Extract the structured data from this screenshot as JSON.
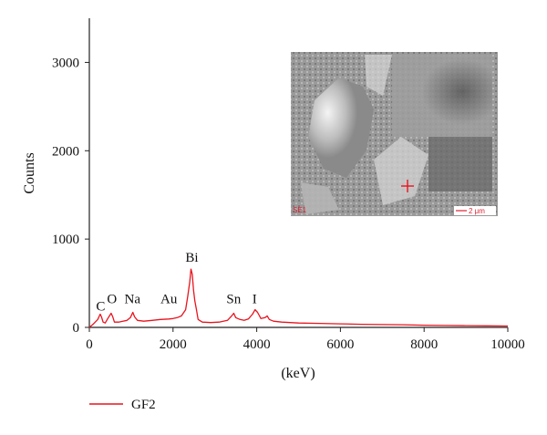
{
  "colors": {
    "spectrum": "#e8141e",
    "axis": "#222222"
  },
  "chart_data": {
    "type": "line",
    "xlabel": "(keV)",
    "ylabel": "Counts",
    "xlim": [
      0,
      10000
    ],
    "ylim": [
      0,
      3500
    ],
    "x_ticks": [
      0,
      2000,
      4000,
      6000,
      8000,
      10000
    ],
    "y_ticks": [
      0,
      1000,
      2000,
      3000
    ],
    "legend": "bottom-left",
    "grid": false,
    "series": [
      {
        "name": "GF2",
        "x": [
          0,
          100,
          200,
          260,
          290,
          330,
          380,
          440,
          520,
          560,
          600,
          700,
          800,
          900,
          980,
          1040,
          1080,
          1150,
          1300,
          1500,
          1700,
          1900,
          2000,
          2100,
          2200,
          2300,
          2350,
          2400,
          2430,
          2460,
          2490,
          2520,
          2560,
          2600,
          2700,
          2900,
          3100,
          3300,
          3400,
          3450,
          3500,
          3600,
          3700,
          3800,
          3900,
          3960,
          4020,
          4100,
          4200,
          4250,
          4300,
          4400,
          4600,
          5000,
          5500,
          6000,
          6500,
          7000,
          7500,
          8000,
          8500,
          9000,
          9500,
          10000
        ],
        "y": [
          0,
          40,
          90,
          150,
          120,
          60,
          50,
          100,
          160,
          120,
          60,
          60,
          70,
          80,
          110,
          170,
          120,
          80,
          70,
          80,
          90,
          95,
          100,
          110,
          130,
          200,
          350,
          520,
          660,
          600,
          420,
          300,
          200,
          90,
          60,
          55,
          60,
          80,
          130,
          160,
          110,
          90,
          80,
          95,
          150,
          200,
          170,
          100,
          110,
          130,
          90,
          70,
          60,
          50,
          45,
          40,
          35,
          32,
          30,
          25,
          22,
          20,
          18,
          15
        ]
      }
    ],
    "annotations": [
      {
        "text": "C",
        "x": 270,
        "y": 150
      },
      {
        "text": "O",
        "x": 540,
        "y": 230
      },
      {
        "text": "Na",
        "x": 1030,
        "y": 230
      },
      {
        "text": "Au",
        "x": 1900,
        "y": 230
      },
      {
        "text": "Bi",
        "x": 2450,
        "y": 700
      },
      {
        "text": "Sn",
        "x": 3450,
        "y": 230
      },
      {
        "text": "I",
        "x": 3950,
        "y": 230
      }
    ]
  },
  "inset": {
    "detector_tag": "SE1",
    "scale_label": "2 μm"
  }
}
